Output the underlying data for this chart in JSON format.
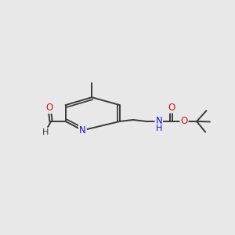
{
  "background_color": "#e8e8e8",
  "bond_color": "#3a3a3a",
  "nitrogen_color": "#1414cc",
  "oxygen_color": "#cc1414",
  "bond_width": 1.4,
  "font_size_atom": 8.5,
  "xlim": [
    0,
    12
  ],
  "ylim": [
    2,
    8
  ],
  "figsize": [
    3.0,
    3.0
  ],
  "dpi": 100
}
